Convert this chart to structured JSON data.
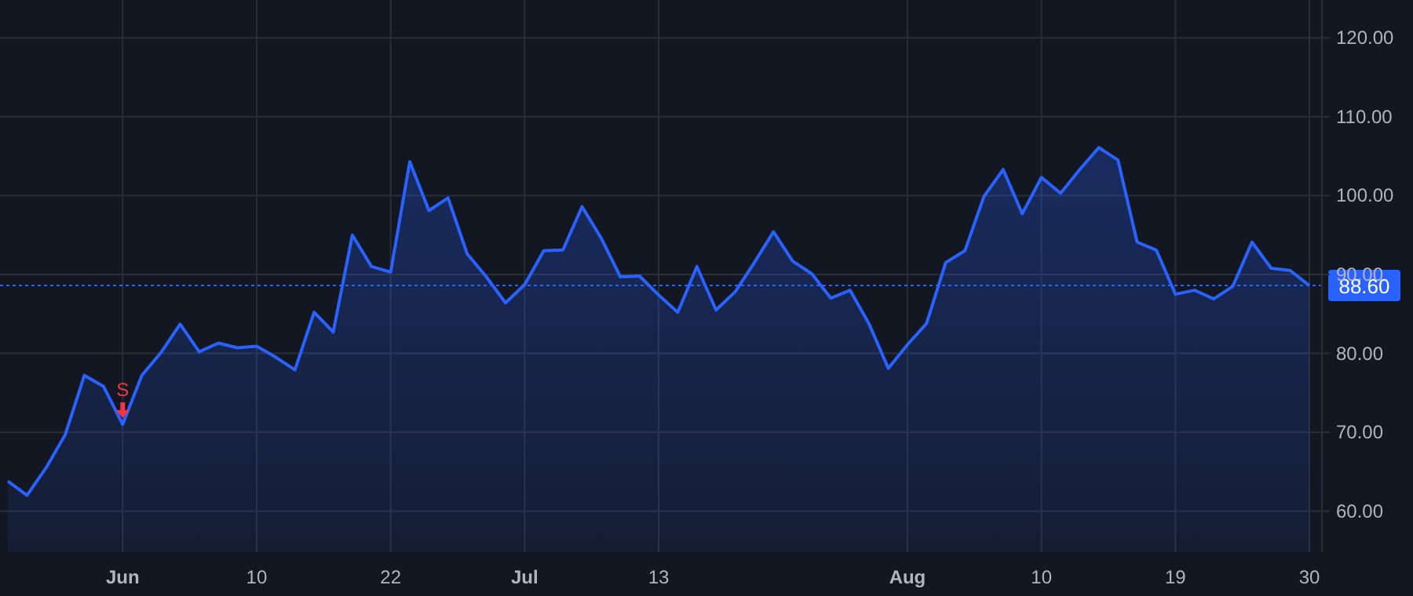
{
  "chart_data": {
    "type": "area",
    "categories": [
      null,
      null,
      null,
      null,
      null,
      null,
      "Jun",
      null,
      null,
      null,
      null,
      null,
      null,
      "10",
      null,
      null,
      null,
      null,
      null,
      null,
      "22",
      null,
      null,
      null,
      null,
      null,
      null,
      "Jul",
      null,
      null,
      null,
      null,
      null,
      null,
      "13",
      null,
      null,
      null,
      null,
      null,
      null,
      null,
      null,
      null,
      null,
      null,
      null,
      "Aug",
      null,
      null,
      null,
      null,
      null,
      null,
      "10",
      null,
      null,
      null,
      null,
      null,
      null,
      "19",
      null,
      null,
      null,
      null,
      null,
      null,
      "30"
    ],
    "series": [
      {
        "color": "#2962ff",
        "values": [
          63.8,
          62.0,
          65.5,
          69.7,
          77.2,
          75.8,
          71.0,
          77.2,
          80.1,
          83.7,
          80.2,
          81.3,
          80.7,
          80.9,
          79.5,
          77.9,
          85.2,
          82.7,
          95.0,
          91.0,
          90.3,
          104.3,
          98.1,
          99.7,
          92.6,
          89.7,
          86.4,
          88.7,
          93.0,
          93.1,
          98.6,
          94.6,
          89.7,
          89.8,
          87.4,
          85.2,
          91.0,
          85.5,
          87.8,
          91.5,
          95.4,
          91.7,
          90.1,
          87.0,
          88.0,
          83.7,
          78.1,
          81.1,
          83.8,
          91.5,
          93.0,
          99.9,
          103.3,
          97.7,
          102.3,
          100.3,
          103.3,
          106.1,
          104.5,
          94.1,
          93.1,
          87.5,
          88.0,
          86.9,
          88.5,
          94.1,
          90.8,
          90.5,
          88.6
        ]
      }
    ],
    "ylim": [
      54.8,
      124.8
    ],
    "yticks": [
      {
        "value": 60,
        "label": "60.00"
      },
      {
        "value": 70,
        "label": "70.00"
      },
      {
        "value": 80,
        "label": "80.00"
      },
      {
        "value": 90,
        "label": "90.00"
      },
      {
        "value": 100,
        "label": "100.00"
      },
      {
        "value": 110,
        "label": "110.00"
      },
      {
        "value": 120,
        "label": "120.00"
      }
    ],
    "grid": true,
    "ref_lines": [
      {
        "axis": "y",
        "value": 88.6,
        "label": "88.60",
        "color": "#2962ff",
        "line_style": "dotted"
      }
    ],
    "annotations": [
      {
        "text": "S",
        "x": "Jun",
        "y": 71.0
      }
    ]
  }
}
